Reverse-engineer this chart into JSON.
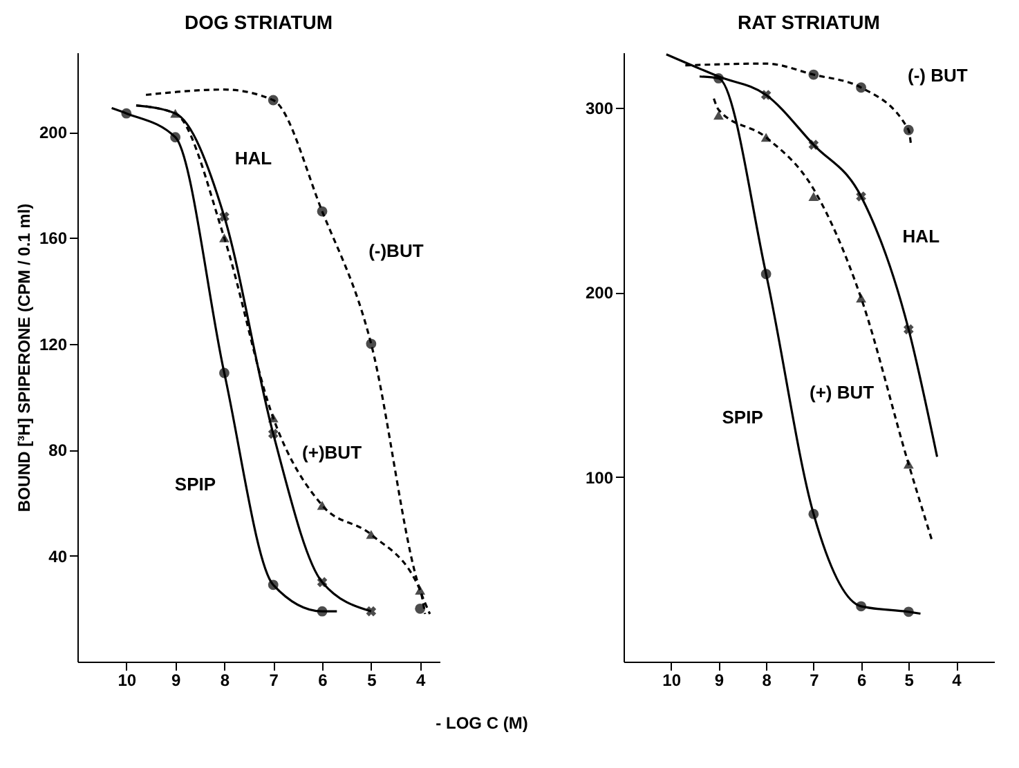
{
  "chart_data": [
    {
      "type": "line",
      "title": "DOG STRIATUM",
      "xlabel": "- LOG C (M)",
      "ylabel": "BOUND [³H] SPIPERONE (CPM / 0.1 ml)",
      "xlim": [
        11,
        3.6
      ],
      "xticks": [
        10,
        9,
        8,
        7,
        6,
        5,
        4
      ],
      "ylim": [
        0,
        230
      ],
      "yticks": [
        40,
        80,
        120,
        160,
        200
      ],
      "grid": false,
      "series": [
        {
          "type": "line",
          "name": "SPIP",
          "color": "#000000",
          "line_style": "solid",
          "x": [
            10.3,
            10,
            9,
            8,
            7,
            6,
            5.7
          ],
          "values": [
            209,
            207,
            198,
            109,
            29,
            19,
            19
          ]
        },
        {
          "type": "scatter",
          "color": "#000000",
          "marker": "circle",
          "x": [
            10,
            9,
            8,
            7,
            6
          ],
          "values": [
            207,
            198,
            109,
            29,
            19
          ]
        },
        {
          "type": "line",
          "name": "HAL",
          "color": "#000000",
          "line_style": "solid",
          "x": [
            9.8,
            9,
            8,
            7,
            6,
            5
          ],
          "values": [
            210,
            207,
            168,
            86,
            30,
            19
          ]
        },
        {
          "type": "scatter",
          "color": "#000000",
          "marker": "cross",
          "x": [
            8,
            7,
            6,
            5
          ],
          "values": [
            168,
            86,
            30,
            19
          ]
        },
        {
          "type": "line",
          "name": "(+)BUT",
          "color": "#000000",
          "line_style": "dashed",
          "x": [
            9.8,
            9,
            8,
            7,
            6,
            5,
            4,
            3.9
          ],
          "values": [
            210,
            207,
            160,
            92,
            59,
            48,
            27,
            18
          ]
        },
        {
          "type": "scatter",
          "color": "#000000",
          "marker": "triangle",
          "x": [
            9,
            8,
            7,
            6,
            5,
            4
          ],
          "values": [
            207,
            160,
            92,
            59,
            48,
            27
          ]
        },
        {
          "type": "line",
          "name": "(-)BUT",
          "color": "#000000",
          "line_style": "dashed",
          "x": [
            9.6,
            8,
            7,
            6,
            5,
            4,
            3.8
          ],
          "values": [
            214,
            216,
            212,
            170,
            120,
            27,
            18
          ]
        },
        {
          "type": "scatter",
          "color": "#000000",
          "marker": "circle",
          "x": [
            7,
            6,
            5,
            4
          ],
          "values": [
            212,
            170,
            120,
            20
          ]
        }
      ]
    },
    {
      "type": "line",
      "title": "RAT STRIATUM",
      "xlim": [
        11,
        3.2
      ],
      "xticks": [
        10,
        9,
        8,
        7,
        6,
        5,
        4
      ],
      "ylim": [
        0,
        330
      ],
      "yticks": [
        100,
        200,
        300
      ],
      "grid": false,
      "series": [
        {
          "type": "line",
          "name": "SPIP",
          "color": "#000000",
          "line_style": "solid",
          "x": [
            9.4,
            9,
            8,
            7,
            6,
            5,
            4.75
          ],
          "values": [
            317,
            316,
            210,
            80,
            30,
            27,
            26
          ]
        },
        {
          "type": "scatter",
          "color": "#000000",
          "marker": "circle",
          "x": [
            9,
            8,
            7,
            6,
            5
          ],
          "values": [
            316,
            210,
            80,
            30,
            27
          ]
        },
        {
          "type": "line",
          "name": "HAL",
          "color": "#000000",
          "line_style": "solid",
          "x": [
            10.1,
            9,
            8,
            7,
            6,
            5,
            4.4
          ],
          "values": [
            329,
            317,
            307,
            280,
            252,
            180,
            111
          ]
        },
        {
          "type": "scatter",
          "color": "#000000",
          "marker": "cross",
          "x": [
            8,
            7,
            6,
            5
          ],
          "values": [
            307,
            280,
            252,
            180
          ]
        },
        {
          "type": "line",
          "name": "(+) BUT",
          "color": "#000000",
          "line_style": "dashed",
          "x": [
            9.1,
            9,
            8,
            7,
            6,
            5,
            4.5
          ],
          "values": [
            305,
            299,
            284,
            256,
            197,
            107,
            65
          ]
        },
        {
          "type": "scatter",
          "color": "#000000",
          "marker": "triangle",
          "x": [
            9,
            8,
            7,
            6,
            5
          ],
          "values": [
            296,
            284,
            252,
            197,
            107
          ]
        },
        {
          "type": "line",
          "name": "(-) BUT",
          "color": "#000000",
          "line_style": "dashed",
          "x": [
            9.7,
            8,
            7,
            6,
            5,
            4.95
          ],
          "values": [
            323,
            324,
            318,
            311,
            288,
            280
          ]
        },
        {
          "type": "scatter",
          "color": "#000000",
          "marker": "circle",
          "x": [
            7,
            6,
            5
          ],
          "values": [
            318,
            311,
            288
          ]
        }
      ]
    }
  ]
}
